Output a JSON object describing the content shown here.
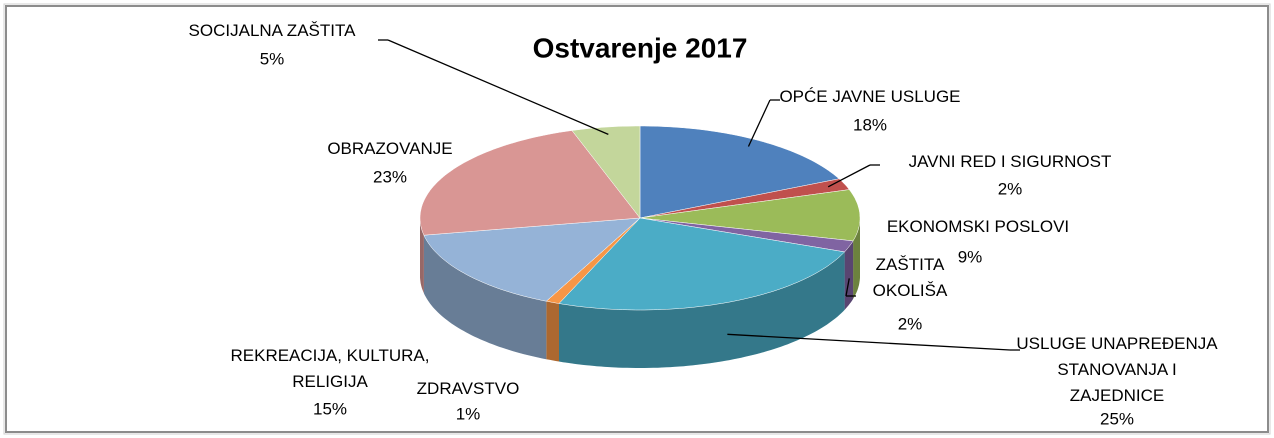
{
  "chart_data": {
    "type": "pie3d",
    "title": "Ostvarenje 2017",
    "categories": [
      "OPĆE JAVNE USLUGE",
      "JAVNI RED I SIGURNOST",
      "EKONOMSKI POSLOVI",
      "ZAŠTITA OKOLIŠA",
      "USLUGE UNAPREĐENJA STANOVANJA I ZAJEDNICE",
      "ZDRAVSTVO",
      "REKREACIJA, KULTURA, RELIGIJA",
      "OBRAZOVANJE",
      "SOCIJALNA ZAŠTITA"
    ],
    "values": [
      18,
      2,
      9,
      2,
      25,
      1,
      15,
      23,
      5
    ],
    "value_labels": [
      "18%",
      "2%",
      "9%",
      "2%",
      "25%",
      "1%",
      "15%",
      "23%",
      "5%"
    ],
    "colors": [
      "#4f81bd",
      "#c0504d",
      "#9bbb59",
      "#8064a2",
      "#4bacc6",
      "#f79646",
      "#95b3d7",
      "#d99694",
      "#c3d69b"
    ]
  }
}
